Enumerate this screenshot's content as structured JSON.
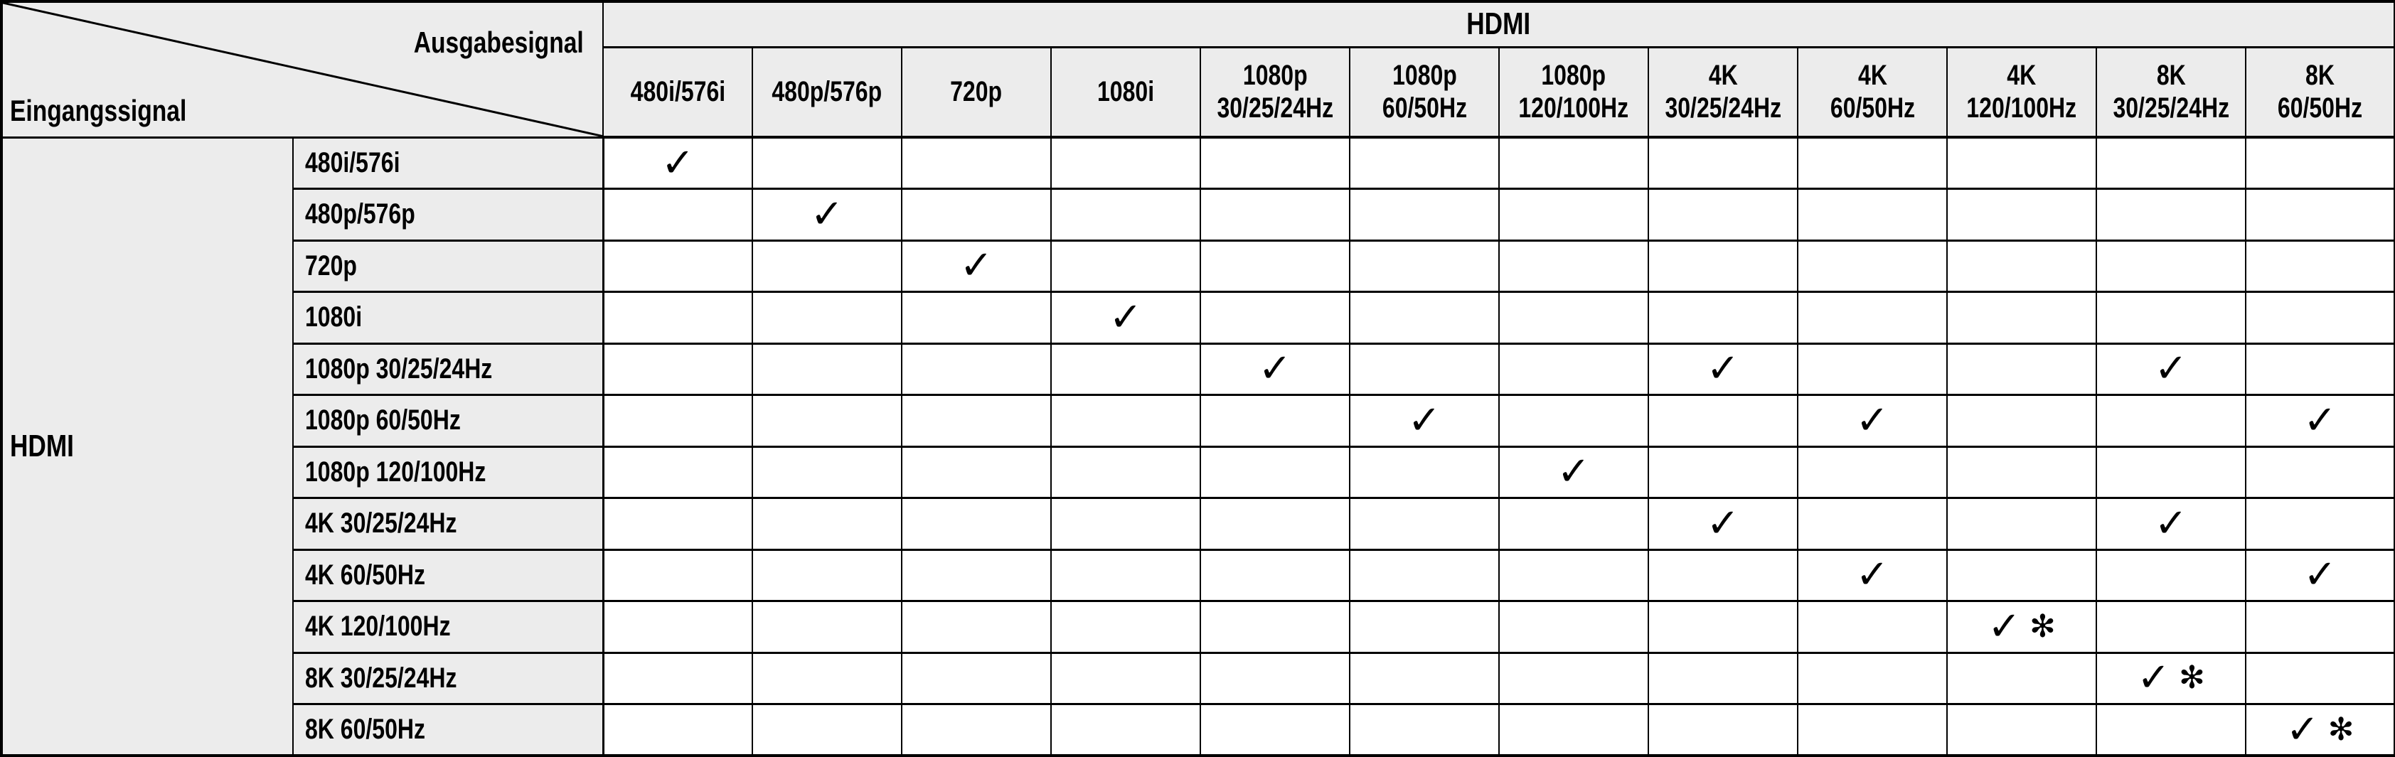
{
  "table": {
    "corner": {
      "output_label": "Ausgabesignal",
      "input_label": "Eingangssignal"
    },
    "output_group_header": "HDMI",
    "input_group_header": "HDMI",
    "symbols": {
      "check": "✓",
      "asterisk": "✻"
    },
    "columns": [
      {
        "lines": [
          "480i/576i"
        ]
      },
      {
        "lines": [
          "480p/576p"
        ]
      },
      {
        "lines": [
          "720p"
        ]
      },
      {
        "lines": [
          "1080i"
        ]
      },
      {
        "lines": [
          "1080p",
          "30/25/24Hz"
        ]
      },
      {
        "lines": [
          "1080p",
          "60/50Hz"
        ]
      },
      {
        "lines": [
          "1080p",
          "120/100Hz"
        ]
      },
      {
        "lines": [
          "4K",
          "30/25/24Hz"
        ]
      },
      {
        "lines": [
          "4K",
          "60/50Hz"
        ]
      },
      {
        "lines": [
          "4K",
          "120/100Hz"
        ]
      },
      {
        "lines": [
          "8K",
          "30/25/24Hz"
        ]
      },
      {
        "lines": [
          "8K",
          "60/50Hz"
        ]
      }
    ],
    "rows": [
      {
        "label": "480i/576i",
        "cells": [
          "check",
          "",
          "",
          "",
          "",
          "",
          "",
          "",
          "",
          "",
          "",
          ""
        ]
      },
      {
        "label": "480p/576p",
        "cells": [
          "",
          "check",
          "",
          "",
          "",
          "",
          "",
          "",
          "",
          "",
          "",
          ""
        ]
      },
      {
        "label": "720p",
        "cells": [
          "",
          "",
          "check",
          "",
          "",
          "",
          "",
          "",
          "",
          "",
          "",
          ""
        ]
      },
      {
        "label": "1080i",
        "cells": [
          "",
          "",
          "",
          "check",
          "",
          "",
          "",
          "",
          "",
          "",
          "",
          ""
        ]
      },
      {
        "label": "1080p 30/25/24Hz",
        "cells": [
          "",
          "",
          "",
          "",
          "check",
          "",
          "",
          "check",
          "",
          "",
          "check",
          ""
        ]
      },
      {
        "label": "1080p 60/50Hz",
        "cells": [
          "",
          "",
          "",
          "",
          "",
          "check",
          "",
          "",
          "check",
          "",
          "",
          "check"
        ]
      },
      {
        "label": "1080p 120/100Hz",
        "cells": [
          "",
          "",
          "",
          "",
          "",
          "",
          "check",
          "",
          "",
          "",
          "",
          ""
        ]
      },
      {
        "label": "4K 30/25/24Hz",
        "cells": [
          "",
          "",
          "",
          "",
          "",
          "",
          "",
          "check",
          "",
          "",
          "check",
          ""
        ]
      },
      {
        "label": "4K 60/50Hz",
        "cells": [
          "",
          "",
          "",
          "",
          "",
          "",
          "",
          "",
          "check",
          "",
          "",
          "check"
        ]
      },
      {
        "label": "4K 120/100Hz",
        "cells": [
          "",
          "",
          "",
          "",
          "",
          "",
          "",
          "",
          "",
          "check_asterisk",
          "",
          ""
        ]
      },
      {
        "label": "8K 30/25/24Hz",
        "cells": [
          "",
          "",
          "",
          "",
          "",
          "",
          "",
          "",
          "",
          "",
          "check_asterisk",
          ""
        ]
      },
      {
        "label": "8K 60/50Hz",
        "cells": [
          "",
          "",
          "",
          "",
          "",
          "",
          "",
          "",
          "",
          "",
          "",
          "check_asterisk"
        ]
      }
    ]
  },
  "colors": {
    "header_bg": "#ececec",
    "cell_bg": "#ffffff",
    "border": "#000000",
    "text": "#000000"
  }
}
